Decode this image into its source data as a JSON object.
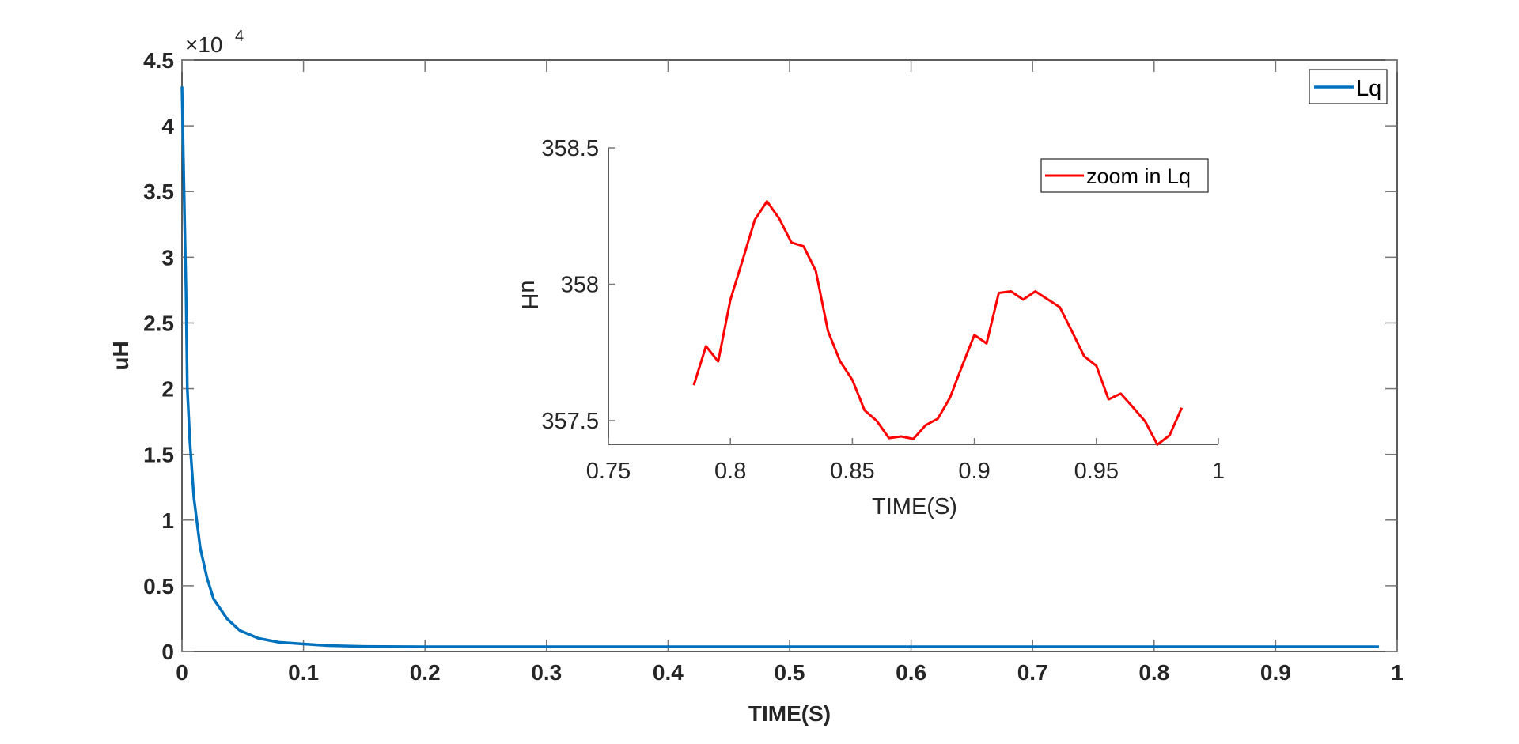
{
  "chart_data": [
    {
      "type": "line",
      "xlabel": "TIME(S)",
      "ylabel": "uH",
      "xlim": [
        0,
        1
      ],
      "ylim": [
        0,
        45000
      ],
      "x_ticks": [
        "0",
        "0.1",
        "0.2",
        "0.3",
        "0.4",
        "0.5",
        "0.6",
        "0.7",
        "0.8",
        "0.9",
        "1"
      ],
      "y_ticks": [
        "0",
        "0.5",
        "1",
        "1.5",
        "2",
        "2.5",
        "3",
        "3.5",
        "4",
        "4.5"
      ],
      "y_exponent_label": "×10",
      "y_exponent": "4",
      "grid": false,
      "legend_position": "top-right",
      "series": [
        {
          "name": "Lq",
          "color": "#0072BD",
          "x": [
            0,
            0.0017,
            0.0033,
            0.0044,
            0.0065,
            0.0098,
            0.015,
            0.0206,
            0.026,
            0.037,
            0.0475,
            0.063,
            0.08,
            0.1,
            0.12,
            0.15,
            0.2,
            0.3,
            0.4,
            0.5,
            0.6,
            0.7,
            0.8,
            0.9,
            0.985
          ],
          "y": [
            43000,
            35000,
            27500,
            20000,
            16000,
            11700,
            7900,
            5600,
            4000,
            2500,
            1600,
            1000,
            700,
            570,
            450,
            380,
            360,
            358,
            358,
            358,
            358,
            358,
            358,
            358,
            358
          ]
        }
      ]
    },
    {
      "type": "line",
      "xlabel": "TIME(S)",
      "ylabel": "uH",
      "xlim": [
        0.75,
        1
      ],
      "ylim": [
        357.41,
        358.5
      ],
      "x_ticks": [
        "0.75",
        "0.8",
        "0.85",
        "0.9",
        "0.95",
        "1"
      ],
      "y_ticks": [
        "357.5",
        "358",
        "358.5"
      ],
      "grid": false,
      "legend_position": "top-right",
      "series": [
        {
          "name": "zoom in Lq",
          "color": "#FF0000",
          "x": [
            0.785,
            0.79,
            0.795,
            0.8,
            0.805,
            0.81,
            0.815,
            0.82,
            0.825,
            0.83,
            0.835,
            0.84,
            0.845,
            0.85,
            0.855,
            0.86,
            0.865,
            0.87,
            0.875,
            0.88,
            0.885,
            0.89,
            0.895,
            0.9,
            0.905,
            0.91,
            0.915,
            0.92,
            0.925,
            0.93,
            0.935,
            0.94,
            0.945,
            0.95,
            0.955,
            0.96,
            0.965,
            0.97,
            0.975,
            0.98,
            0.985
          ],
          "y": [
            357.63,
            357.773,
            357.717,
            357.943,
            358.088,
            358.236,
            358.304,
            358.241,
            358.153,
            358.139,
            358.049,
            357.828,
            357.717,
            357.649,
            357.538,
            357.499,
            357.436,
            357.442,
            357.433,
            357.483,
            357.507,
            357.584,
            357.701,
            357.814,
            357.783,
            357.968,
            357.974,
            357.944,
            357.974,
            357.945,
            357.916,
            357.827,
            357.736,
            357.701,
            357.578,
            357.599,
            357.549,
            357.497,
            357.412,
            357.446,
            357.547
          ]
        }
      ]
    }
  ]
}
